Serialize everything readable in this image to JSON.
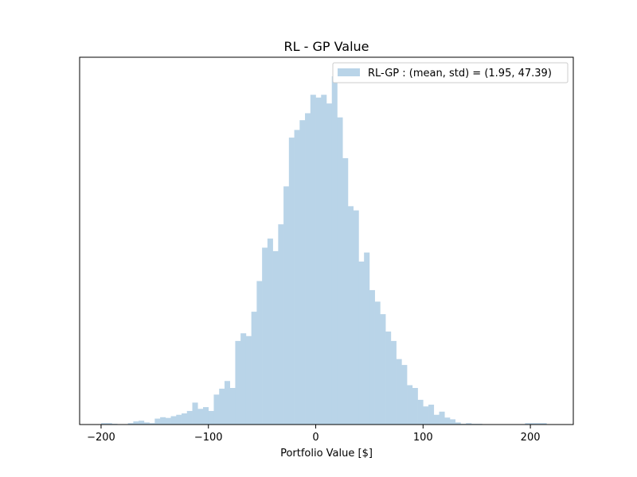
{
  "chart_data": {
    "type": "bar",
    "title": "RL - GP Value",
    "xlabel": "Portfolio Value [$]",
    "ylabel": "",
    "xlim": [
      -220,
      240
    ],
    "ylim": [
      0,
      1
    ],
    "x_ticks": [
      -200,
      -100,
      0,
      100,
      200
    ],
    "x_tick_labels": [
      "−200",
      "−100",
      "0",
      "100",
      "200"
    ],
    "y_ticks_visible": false,
    "grid": false,
    "legend_position": "top-right",
    "bar_color": "#b9d4e8",
    "bin_width": 5,
    "series": [
      {
        "name": "RL-GP : (mean, std) = (1.95, 47.39)",
        "bin_starts": [
          -200,
          -195,
          -190,
          -185,
          -180,
          -175,
          -170,
          -165,
          -160,
          -155,
          -150,
          -145,
          -140,
          -135,
          -130,
          -125,
          -120,
          -115,
          -110,
          -105,
          -100,
          -95,
          -90,
          -85,
          -80,
          -75,
          -70,
          -65,
          -60,
          -55,
          -50,
          -45,
          -40,
          -35,
          -30,
          -25,
          -20,
          -15,
          -10,
          -5,
          0,
          5,
          10,
          15,
          20,
          25,
          30,
          35,
          40,
          45,
          50,
          55,
          60,
          65,
          70,
          75,
          80,
          85,
          90,
          95,
          100,
          105,
          110,
          115,
          120,
          125,
          130,
          135,
          140,
          145,
          150,
          155,
          160,
          165,
          170,
          175,
          180,
          185,
          190,
          195,
          200,
          205,
          210,
          215
        ],
        "values": [
          0.004,
          0.004,
          0.002,
          0,
          0,
          0.004,
          0.009,
          0.011,
          0.006,
          0.004,
          0.017,
          0.021,
          0.019,
          0.024,
          0.028,
          0.032,
          0.039,
          0.063,
          0.045,
          0.05,
          0.039,
          0.086,
          0.103,
          0.125,
          0.105,
          0.24,
          0.262,
          0.254,
          0.324,
          0.412,
          0.508,
          0.534,
          0.498,
          0.575,
          0.684,
          0.824,
          0.846,
          0.874,
          0.894,
          0.947,
          0.939,
          0.947,
          0.922,
          1.0,
          0.882,
          0.765,
          0.627,
          0.615,
          0.468,
          0.494,
          0.386,
          0.353,
          0.317,
          0.267,
          0.24,
          0.188,
          0.171,
          0.113,
          0.105,
          0.071,
          0.052,
          0.057,
          0.028,
          0.037,
          0.02,
          0.015,
          0.006,
          0.002,
          0.004,
          0.002,
          0.002,
          0,
          0,
          0,
          0,
          0,
          0,
          0,
          0,
          0.004,
          0.004,
          0.004,
          0.004,
          0
        ]
      }
    ]
  }
}
